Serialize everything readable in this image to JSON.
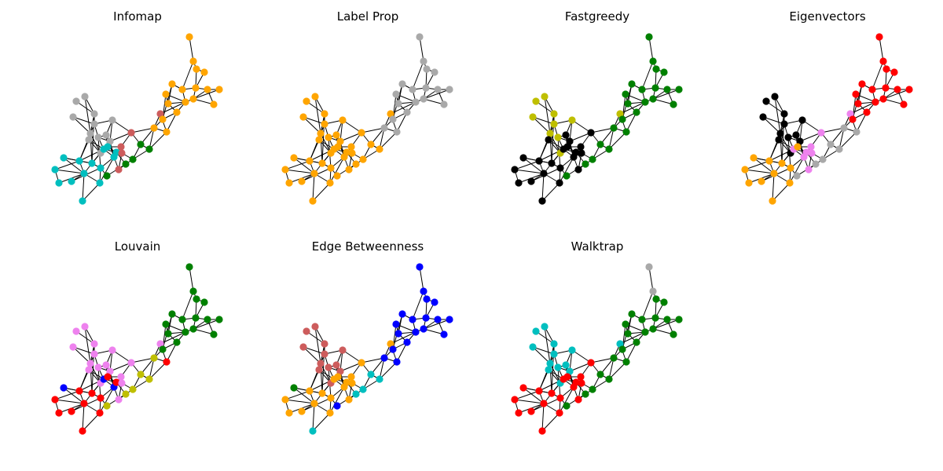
{
  "figure": {
    "panels": [
      {
        "id": "infomap",
        "title": "Infomap",
        "colors": [
          "#ffa500",
          "#ffa500",
          "#ffa500",
          "#ffa500",
          "#ffa500",
          "#ffa500",
          "#ffa500",
          "#ffa500",
          "#ffa500",
          "#ffa500",
          "#ffa500",
          "#ffa500",
          "#ffa500",
          "#ffa500",
          "#a9a9a9",
          "#a9a9a9",
          "#a9a9a9",
          "#a9a9a9",
          "#a9a9a9",
          "#a9a9a9",
          "#a9a9a9",
          "#a9a9a9",
          "#a9a9a9",
          "#a9a9a9",
          "#a9a9a9",
          "#a9a9a9",
          "#00bfbf",
          "#00bfbf",
          "#00bfbf",
          "#00bfbf",
          "#00bfbf",
          "#00bfbf",
          "#00bfbf",
          "#00bfbf",
          "#00bfbf",
          "#00bfbf",
          "#00bfbf",
          "#00bfbf",
          "#00bfbf",
          "#00bfbf",
          "#cd5c5c",
          "#cd5c5c",
          "#cd5c5c",
          "#cd5c5c",
          "#cd5c5c",
          "#008000",
          "#008000",
          "#008000",
          "#008000",
          "#008000",
          "#ffa500",
          "#ffa500",
          "#ffa500",
          "#ffa500"
        ]
      },
      {
        "id": "labelprop",
        "title": "Label Prop",
        "colors": [
          "#a9a9a9",
          "#a9a9a9",
          "#a9a9a9",
          "#a9a9a9",
          "#a9a9a9",
          "#a9a9a9",
          "#a9a9a9",
          "#a9a9a9",
          "#a9a9a9",
          "#a9a9a9",
          "#a9a9a9",
          "#a9a9a9",
          "#a9a9a9",
          "#a9a9a9",
          "#ffa500",
          "#ffa500",
          "#ffa500",
          "#ffa500",
          "#ffa500",
          "#ffa500",
          "#ffa500",
          "#ffa500",
          "#ffa500",
          "#ffa500",
          "#ffa500",
          "#ffa500",
          "#ffa500",
          "#ffa500",
          "#ffa500",
          "#ffa500",
          "#ffa500",
          "#ffa500",
          "#ffa500",
          "#ffa500",
          "#ffa500",
          "#ffa500",
          "#ffa500",
          "#ffa500",
          "#ffa500",
          "#ffa500",
          "#ffa500",
          "#ffa500",
          "#ffa500",
          "#ffa500",
          "#ffa500",
          "#ffa500",
          "#ffa500",
          "#ffa500",
          "#ffa500",
          "#ffa500",
          "#a9a9a9",
          "#a9a9a9",
          "#a9a9a9",
          "#a9a9a9"
        ]
      },
      {
        "id": "fastgreedy",
        "title": "Fastgreedy",
        "colors": [
          "#008000",
          "#008000",
          "#008000",
          "#008000",
          "#008000",
          "#008000",
          "#008000",
          "#008000",
          "#008000",
          "#008000",
          "#008000",
          "#008000",
          "#008000",
          "#008000",
          "#bfbf00",
          "#bfbf00",
          "#bfbf00",
          "#bfbf00",
          "#bfbf00",
          "#bfbf00",
          "#bfbf00",
          "#bfbf00",
          "#000000",
          "#000000",
          "#000000",
          "#bfbf00",
          "#000000",
          "#000000",
          "#000000",
          "#000000",
          "#000000",
          "#000000",
          "#000000",
          "#000000",
          "#000000",
          "#000000",
          "#000000",
          "#000000",
          "#000000",
          "#000000",
          "#000000",
          "#000000",
          "#000000",
          "#000000",
          "#bfbf00",
          "#008000",
          "#008000",
          "#008000",
          "#008000",
          "#008000",
          "#008000",
          "#008000",
          "#008000",
          "#008000"
        ]
      },
      {
        "id": "eigenvectors",
        "title": "Eigenvectors",
        "colors": [
          "#ff0000",
          "#ff0000",
          "#ff0000",
          "#ff0000",
          "#ff0000",
          "#ff0000",
          "#ff0000",
          "#ff0000",
          "#ff0000",
          "#ff0000",
          "#ff0000",
          "#ff0000",
          "#ff0000",
          "#ff0000",
          "#000000",
          "#000000",
          "#000000",
          "#000000",
          "#000000",
          "#000000",
          "#000000",
          "#000000",
          "#000000",
          "#000000",
          "#000000",
          "#000000",
          "#ffa500",
          "#ffa500",
          "#ffa500",
          "#ffa500",
          "#ffa500",
          "#ffa500",
          "#ffa500",
          "#ffa500",
          "#ffa500",
          "#ee82ee",
          "#ee82ee",
          "#ee82ee",
          "#ffa500",
          "#ffa500",
          "#ee82ee",
          "#ee82ee",
          "#ee82ee",
          "#ee82ee",
          "#ee82ee",
          "#a9a9a9",
          "#a9a9a9",
          "#a9a9a9",
          "#a9a9a9",
          "#a9a9a9",
          "#a9a9a9",
          "#a9a9a9",
          "#ff0000",
          "#ff0000"
        ]
      },
      {
        "id": "louvain",
        "title": "Louvain",
        "colors": [
          "#008000",
          "#008000",
          "#008000",
          "#008000",
          "#008000",
          "#008000",
          "#008000",
          "#008000",
          "#008000",
          "#008000",
          "#008000",
          "#008000",
          "#008000",
          "#008000",
          "#ee82ee",
          "#ee82ee",
          "#ee82ee",
          "#ee82ee",
          "#ee82ee",
          "#ee82ee",
          "#ee82ee",
          "#ee82ee",
          "#ee82ee",
          "#ee82ee",
          "#ee82ee",
          "#ee82ee",
          "#0000ff",
          "#ff0000",
          "#ff0000",
          "#ff0000",
          "#ff0000",
          "#ff0000",
          "#ff0000",
          "#ff0000",
          "#ff0000",
          "#0000ff",
          "#0000ff",
          "#ff0000",
          "#ff0000",
          "#ff0000",
          "#ee82ee",
          "#ee82ee",
          "#ee82ee",
          "#ee82ee",
          "#ee82ee",
          "#bfbf00",
          "#bfbf00",
          "#bfbf00",
          "#bfbf00",
          "#bfbf00",
          "#bfbf00",
          "#ff0000",
          "#008000",
          "#008000"
        ]
      },
      {
        "id": "edgebetweenness",
        "title": "Edge Betweenness",
        "colors": [
          "#0000ff",
          "#0000ff",
          "#0000ff",
          "#0000ff",
          "#0000ff",
          "#0000ff",
          "#0000ff",
          "#0000ff",
          "#0000ff",
          "#0000ff",
          "#0000ff",
          "#0000ff",
          "#0000ff",
          "#0000ff",
          "#cd5c5c",
          "#cd5c5c",
          "#cd5c5c",
          "#cd5c5c",
          "#cd5c5c",
          "#cd5c5c",
          "#cd5c5c",
          "#cd5c5c",
          "#cd5c5c",
          "#cd5c5c",
          "#cd5c5c",
          "#cd5c5c",
          "#008000",
          "#ffa500",
          "#ffa500",
          "#ffa500",
          "#ffa500",
          "#ffa500",
          "#ffa500",
          "#ffa500",
          "#ffa500",
          "#ffa500",
          "#ffa500",
          "#ffa500",
          "#ffa500",
          "#00bfbf",
          "#ffa500",
          "#ffa500",
          "#ffa500",
          "#ffa500",
          "#ffa500",
          "#00bfbf",
          "#00bfbf",
          "#00bfbf",
          "#00bfbf",
          "#0000ff",
          "#0000ff",
          "#0000ff",
          "#0000ff",
          "#0000ff"
        ]
      },
      {
        "id": "walktrap",
        "title": "Walktrap",
        "colors": [
          "#a9a9a9",
          "#a9a9a9",
          "#008000",
          "#008000",
          "#008000",
          "#008000",
          "#008000",
          "#008000",
          "#008000",
          "#008000",
          "#008000",
          "#008000",
          "#008000",
          "#008000",
          "#00bfbf",
          "#00bfbf",
          "#00bfbf",
          "#00bfbf",
          "#00bfbf",
          "#00bfbf",
          "#00bfbf",
          "#00bfbf",
          "#00bfbf",
          "#00bfbf",
          "#00bfbf",
          "#00bfbf",
          "#ff0000",
          "#ff0000",
          "#ff0000",
          "#ff0000",
          "#ff0000",
          "#ff0000",
          "#ff0000",
          "#ff0000",
          "#ff0000",
          "#ff0000",
          "#ff0000",
          "#ff0000",
          "#ff0000",
          "#ff0000",
          "#ff0000",
          "#ff0000",
          "#ff0000",
          "#ff0000",
          "#00bfbf",
          "#008000",
          "#008000",
          "#008000",
          "#008000",
          "#008000",
          "#008000",
          "#008000",
          "#008000",
          "#008000"
        ]
      }
    ]
  }
}
